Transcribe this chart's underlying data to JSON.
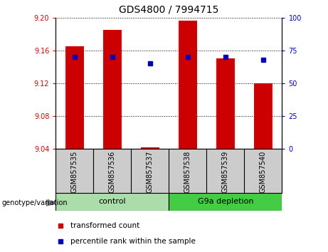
{
  "title": "GDS4800 / 7994715",
  "samples": [
    "GSM857535",
    "GSM857536",
    "GSM857537",
    "GSM857538",
    "GSM857539",
    "GSM857540"
  ],
  "bar_bottom": 9.04,
  "bar_tops": [
    9.165,
    9.185,
    9.042,
    9.196,
    9.15,
    9.12
  ],
  "percentile_ranks": [
    70,
    70,
    65,
    70,
    70,
    68
  ],
  "ylim_left": [
    9.04,
    9.2
  ],
  "ylim_right": [
    0,
    100
  ],
  "yticks_left": [
    9.04,
    9.08,
    9.12,
    9.16,
    9.2
  ],
  "yticks_right": [
    0,
    25,
    50,
    75,
    100
  ],
  "bar_color": "#CC0000",
  "dot_color": "#0000BB",
  "left_tick_color": "#CC0000",
  "right_tick_color": "#0000BB",
  "legend_items": [
    "transformed count",
    "percentile rank within the sample"
  ],
  "legend_colors": [
    "#CC0000",
    "#0000BB"
  ],
  "group_annotation_label": "genotype/variation",
  "group_spans": [
    [
      0,
      2,
      "control",
      "#AADDAA"
    ],
    [
      3,
      5,
      "G9a depletion",
      "#44CC44"
    ]
  ],
  "sample_bg": "#CCCCCC",
  "plot_bg": "#FFFFFF",
  "bar_width": 0.5
}
